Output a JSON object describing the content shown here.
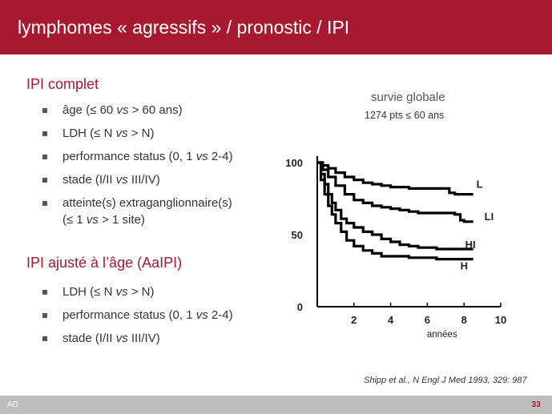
{
  "title": "lymphomes « agressifs » / pronostic / IPI",
  "section1": {
    "heading": "IPI complet",
    "items": [
      [
        "âge (≤ 60 ",
        "vs",
        " > 60 ans)"
      ],
      [
        "LDH (≤ N ",
        "vs",
        " > N)"
      ],
      [
        "performance status (0, 1 ",
        "vs",
        " 2-4)"
      ],
      [
        "stade (I/II ",
        "vs",
        " III/IV)"
      ],
      [
        "atteinte(s) extraganglionnaire(s)",
        "",
        ""
      ],
      [
        "(≤ 1 ",
        "vs",
        " > 1 site)"
      ]
    ]
  },
  "section2": {
    "heading": "IPI ajusté à l’âge (AaIPI)",
    "items": [
      [
        "LDH (≤ N ",
        "vs",
        " > N)"
      ],
      [
        "performance status (0, 1 ",
        "vs",
        " 2-4)"
      ],
      [
        "stade (I/II ",
        "vs",
        " III/IV)"
      ]
    ]
  },
  "chart_data": {
    "type": "line",
    "title": "survie globale",
    "subtitle": "1274 pts ≤ 60 ans",
    "xlabel": "années",
    "ylabel": "",
    "x_ticks": [
      2,
      4,
      6,
      8,
      10
    ],
    "y_ticks": [
      0,
      50,
      100
    ],
    "xlim": [
      0,
      10
    ],
    "ylim": [
      0,
      100
    ],
    "series": [
      {
        "name": "L",
        "points": [
          [
            0,
            100
          ],
          [
            0.3,
            98
          ],
          [
            0.6,
            96
          ],
          [
            1,
            93
          ],
          [
            1.5,
            90
          ],
          [
            2,
            88
          ],
          [
            2.5,
            86
          ],
          [
            3,
            85
          ],
          [
            3.5,
            84
          ],
          [
            4,
            83
          ],
          [
            4.5,
            83
          ],
          [
            5,
            82
          ],
          [
            5.5,
            82
          ],
          [
            6,
            82
          ],
          [
            6.5,
            82
          ],
          [
            7,
            82
          ],
          [
            7.2,
            79
          ],
          [
            7.5,
            78
          ],
          [
            8,
            78
          ],
          [
            8.5,
            78
          ]
        ]
      },
      {
        "name": "LI",
        "points": [
          [
            0,
            100
          ],
          [
            0.3,
            95
          ],
          [
            0.6,
            90
          ],
          [
            1,
            84
          ],
          [
            1.5,
            78
          ],
          [
            2,
            74
          ],
          [
            2.5,
            72
          ],
          [
            3,
            70
          ],
          [
            3.5,
            69
          ],
          [
            4,
            68
          ],
          [
            4.5,
            67
          ],
          [
            5,
            66
          ],
          [
            5.5,
            65
          ],
          [
            6,
            65
          ],
          [
            7,
            65
          ],
          [
            7.5,
            64
          ],
          [
            7.8,
            60
          ],
          [
            8,
            59
          ],
          [
            8.5,
            59
          ]
        ]
      },
      {
        "name": "HI",
        "points": [
          [
            0,
            100
          ],
          [
            0.2,
            92
          ],
          [
            0.4,
            85
          ],
          [
            0.6,
            78
          ],
          [
            0.8,
            72
          ],
          [
            1,
            67
          ],
          [
            1.3,
            61
          ],
          [
            1.6,
            58
          ],
          [
            2,
            55
          ],
          [
            2.5,
            52
          ],
          [
            3,
            50
          ],
          [
            3.5,
            47
          ],
          [
            4,
            45
          ],
          [
            4.5,
            43
          ],
          [
            5,
            42
          ],
          [
            5.5,
            41
          ],
          [
            6,
            41
          ],
          [
            6.5,
            40
          ],
          [
            7,
            40
          ],
          [
            8,
            40
          ],
          [
            8.5,
            40
          ]
        ]
      },
      {
        "name": "H",
        "points": [
          [
            0,
            100
          ],
          [
            0.2,
            88
          ],
          [
            0.4,
            78
          ],
          [
            0.6,
            70
          ],
          [
            0.8,
            64
          ],
          [
            1,
            58
          ],
          [
            1.3,
            52
          ],
          [
            1.6,
            46
          ],
          [
            2,
            42
          ],
          [
            2.5,
            39
          ],
          [
            3,
            37
          ],
          [
            3.5,
            35
          ],
          [
            4,
            35
          ],
          [
            5,
            34
          ],
          [
            6,
            34
          ],
          [
            6.5,
            33
          ],
          [
            7,
            33
          ],
          [
            8,
            33
          ],
          [
            8.5,
            33
          ]
        ]
      }
    ]
  },
  "citation": "Shipp et al., N Engl J Med 1993, 329: 987",
  "footer": {
    "left": "AD",
    "page": "33"
  }
}
